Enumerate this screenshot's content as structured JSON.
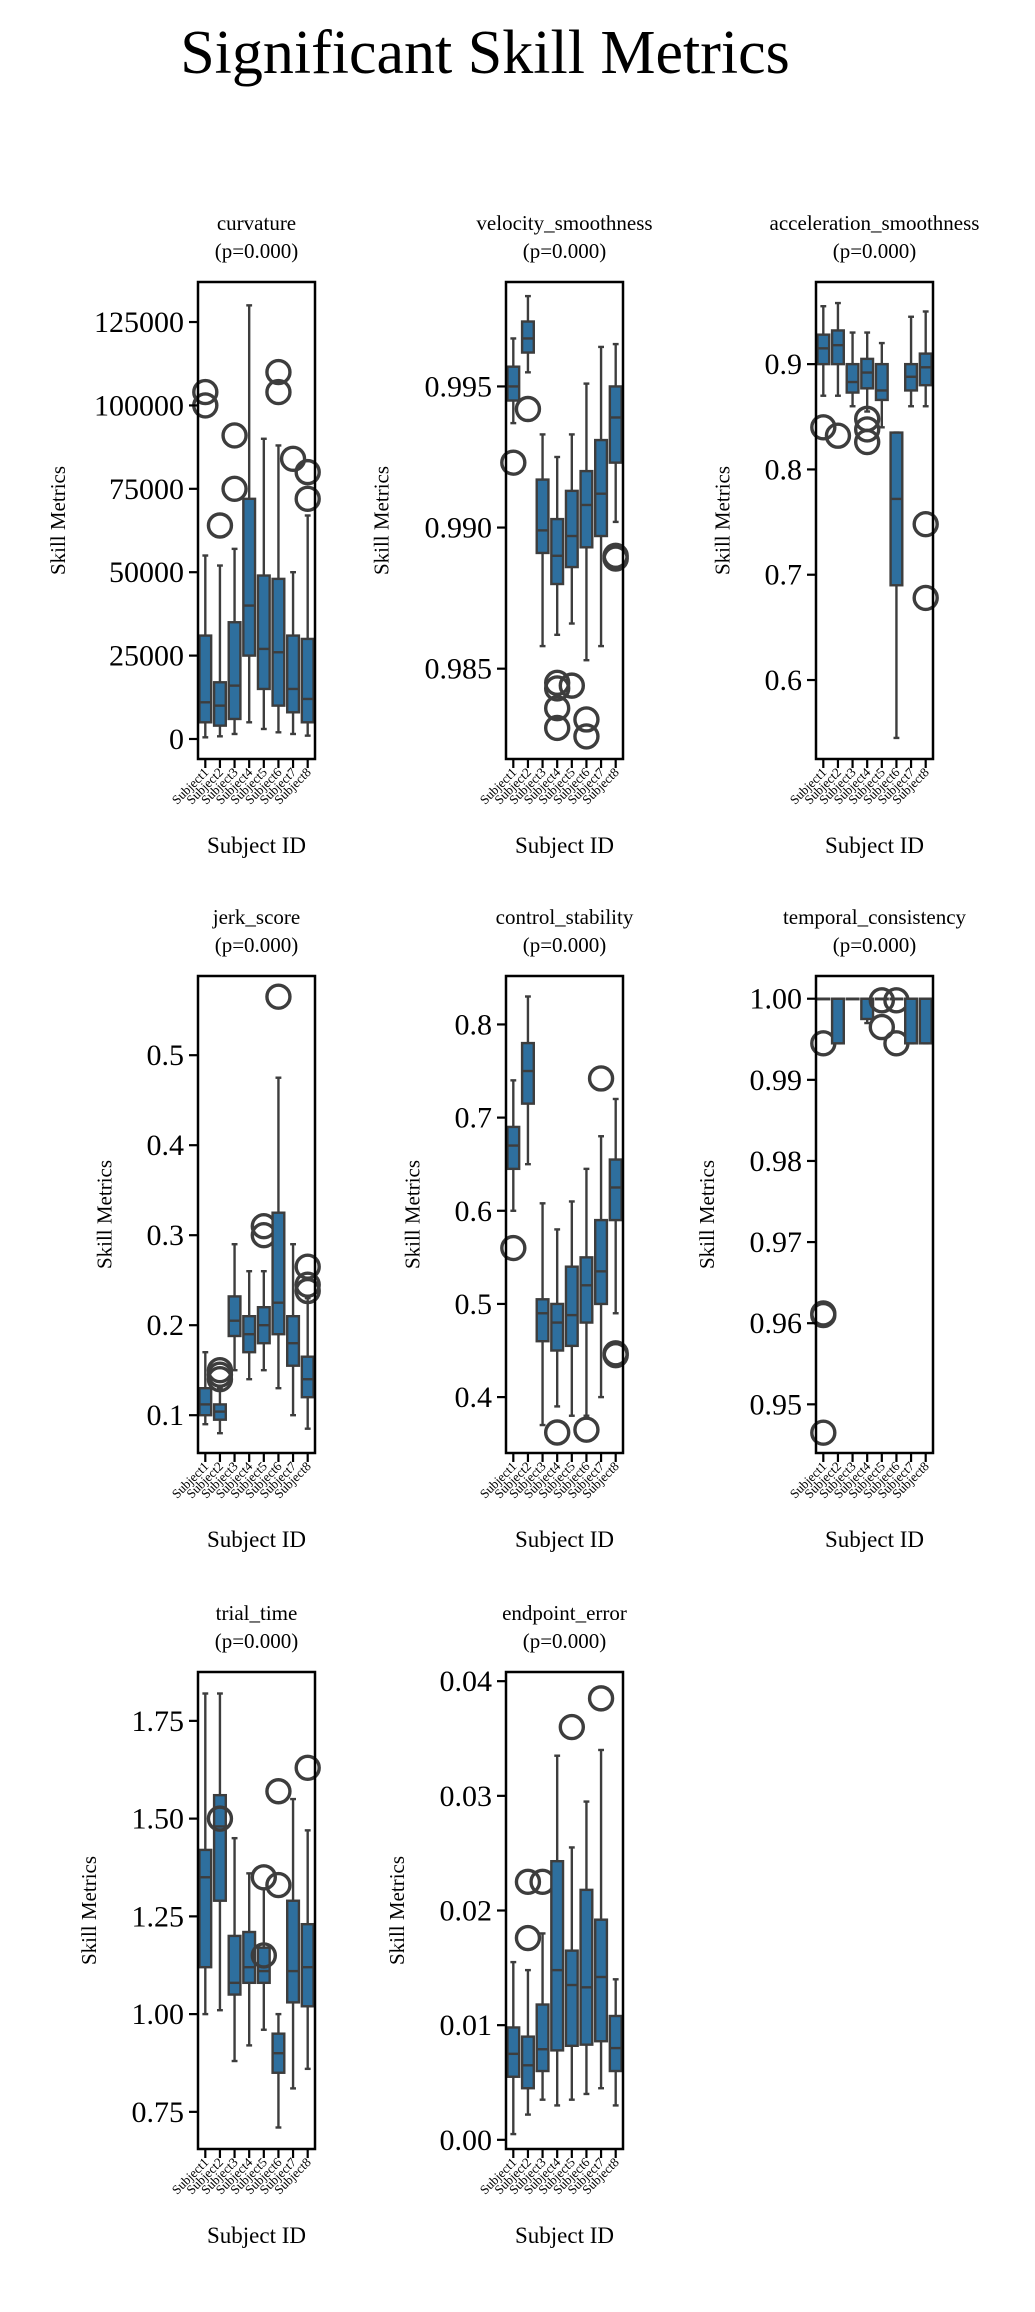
{
  "figure": {
    "title": "Significant Skill Metrics"
  },
  "style": {
    "box_color": "#2e6f9e",
    "line_color": "#3d3d3d",
    "outlier_color": "#3d3d3d"
  },
  "chart_data": [
    {
      "type": "box",
      "title": "curvature",
      "subtitle": "(p=0.000)",
      "xlabel": "Subject ID",
      "ylabel": "Skill Metrics",
      "ylim": [
        -6000,
        137000
      ],
      "yticks": [
        0,
        25000,
        50000,
        75000,
        100000,
        125000
      ],
      "ytick_labels": [
        "0",
        "25000",
        "50000",
        "75000",
        "100000",
        "125000"
      ],
      "categories": [
        "Subject1",
        "Subject2",
        "Subject3",
        "Subject4",
        "Subject5",
        "Subject6",
        "Subject7",
        "Subject8"
      ],
      "boxes": [
        {
          "whislo": 500,
          "q1": 5000,
          "med": 11000,
          "q3": 31000,
          "whishi": 55000,
          "fliers": [
            100000,
            104000
          ]
        },
        {
          "whislo": 800,
          "q1": 4000,
          "med": 10000,
          "q3": 17000,
          "whishi": 52000,
          "fliers": [
            64000
          ]
        },
        {
          "whislo": 1500,
          "q1": 6000,
          "med": 16000,
          "q3": 35000,
          "whishi": 57000,
          "fliers": [
            75000,
            91000
          ]
        },
        {
          "whislo": 5000,
          "q1": 25000,
          "med": 40000,
          "q3": 72000,
          "whishi": 130000,
          "fliers": []
        },
        {
          "whislo": 3000,
          "q1": 15000,
          "med": 27000,
          "q3": 49000,
          "whishi": 90000,
          "fliers": []
        },
        {
          "whislo": 2000,
          "q1": 10000,
          "med": 26000,
          "q3": 48000,
          "whishi": 88000,
          "fliers": [
            110000,
            104000
          ]
        },
        {
          "whislo": 1500,
          "q1": 8000,
          "med": 15000,
          "q3": 31000,
          "whishi": 50000,
          "fliers": [
            84000
          ]
        },
        {
          "whislo": 1000,
          "q1": 5000,
          "med": 12000,
          "q3": 30000,
          "whishi": 67000,
          "fliers": [
            80000,
            72000
          ]
        }
      ]
    },
    {
      "type": "box",
      "title": "velocity_smoothness",
      "subtitle": "(p=0.000)",
      "xlabel": "Subject ID",
      "ylabel": "Skill Metrics",
      "ylim": [
        0.9818,
        0.9987
      ],
      "yticks": [
        0.985,
        0.99,
        0.995
      ],
      "ytick_labels": [
        "0.985",
        "0.990",
        "0.995"
      ],
      "categories": [
        "Subject1",
        "Subject2",
        "Subject3",
        "Subject4",
        "Subject5",
        "Subject6",
        "Subject7",
        "Subject8"
      ],
      "boxes": [
        {
          "whislo": 0.9937,
          "q1": 0.9945,
          "med": 0.995,
          "q3": 0.9957,
          "whishi": 0.9967,
          "fliers": [
            0.9923
          ]
        },
        {
          "whislo": 0.9955,
          "q1": 0.9962,
          "med": 0.9967,
          "q3": 0.9973,
          "whishi": 0.9982,
          "fliers": [
            0.9942
          ]
        },
        {
          "whislo": 0.9858,
          "q1": 0.9891,
          "med": 0.9899,
          "q3": 0.9917,
          "whishi": 0.9933,
          "fliers": []
        },
        {
          "whislo": 0.9862,
          "q1": 0.988,
          "med": 0.989,
          "q3": 0.9903,
          "whishi": 0.9925,
          "fliers": [
            0.9845,
            0.9843,
            0.9836,
            0.9829
          ]
        },
        {
          "whislo": 0.9866,
          "q1": 0.9886,
          "med": 0.9897,
          "q3": 0.9913,
          "whishi": 0.9933,
          "fliers": [
            0.9844
          ]
        },
        {
          "whislo": 0.9853,
          "q1": 0.9893,
          "med": 0.9908,
          "q3": 0.992,
          "whishi": 0.9951,
          "fliers": [
            0.9832,
            0.9826
          ]
        },
        {
          "whislo": 0.9858,
          "q1": 0.9897,
          "med": 0.9912,
          "q3": 0.9931,
          "whishi": 0.9964,
          "fliers": []
        },
        {
          "whislo": 0.9902,
          "q1": 0.9923,
          "med": 0.9939,
          "q3": 0.995,
          "whishi": 0.9965,
          "fliers": [
            0.9889,
            0.989
          ]
        }
      ]
    },
    {
      "type": "box",
      "title": "acceleration_smoothness",
      "subtitle": "(p=0.000)",
      "xlabel": "Subject ID",
      "ylabel": "Skill Metrics",
      "ylim": [
        0.525,
        0.978
      ],
      "yticks": [
        0.6,
        0.7,
        0.8,
        0.9
      ],
      "ytick_labels": [
        "0.6",
        "0.7",
        "0.8",
        "0.9"
      ],
      "categories": [
        "Subject1",
        "Subject2",
        "Subject3",
        "Subject4",
        "Subject5",
        "Subject6",
        "Subject7",
        "Subject8"
      ],
      "boxes": [
        {
          "whislo": 0.87,
          "q1": 0.9,
          "med": 0.915,
          "q3": 0.928,
          "whishi": 0.955,
          "fliers": [
            0.84
          ]
        },
        {
          "whislo": 0.87,
          "q1": 0.9,
          "med": 0.918,
          "q3": 0.932,
          "whishi": 0.958,
          "fliers": [
            0.832
          ]
        },
        {
          "whislo": 0.86,
          "q1": 0.873,
          "med": 0.883,
          "q3": 0.9,
          "whishi": 0.93,
          "fliers": []
        },
        {
          "whislo": 0.855,
          "q1": 0.877,
          "med": 0.892,
          "q3": 0.905,
          "whishi": 0.93,
          "fliers": [
            0.848,
            0.838,
            0.826
          ]
        },
        {
          "whislo": 0.84,
          "q1": 0.866,
          "med": 0.875,
          "q3": 0.9,
          "whishi": 0.92,
          "fliers": []
        },
        {
          "whislo": 0.545,
          "q1": 0.69,
          "med": 0.772,
          "q3": 0.835,
          "whishi": 0.835,
          "fliers": []
        },
        {
          "whislo": 0.86,
          "q1": 0.875,
          "med": 0.888,
          "q3": 0.9,
          "whishi": 0.945,
          "fliers": []
        },
        {
          "whislo": 0.86,
          "q1": 0.88,
          "med": 0.897,
          "q3": 0.91,
          "whishi": 0.95,
          "fliers": [
            0.748,
            0.678
          ]
        }
      ]
    },
    {
      "type": "box",
      "title": "jerk_score",
      "subtitle": "(p=0.000)",
      "xlabel": "Subject ID",
      "ylabel": "Skill Metrics",
      "ylim": [
        0.058,
        0.588
      ],
      "yticks": [
        0.1,
        0.2,
        0.3,
        0.4,
        0.5
      ],
      "ytick_labels": [
        "0.1",
        "0.2",
        "0.3",
        "0.4",
        "0.5"
      ],
      "categories": [
        "Subject1",
        "Subject2",
        "Subject3",
        "Subject4",
        "Subject5",
        "Subject6",
        "Subject7",
        "Subject8"
      ],
      "boxes": [
        {
          "whislo": 0.09,
          "q1": 0.1,
          "med": 0.112,
          "q3": 0.13,
          "whishi": 0.17,
          "fliers": []
        },
        {
          "whislo": 0.08,
          "q1": 0.095,
          "med": 0.104,
          "q3": 0.112,
          "whishi": 0.13,
          "fliers": [
            0.15,
            0.145,
            0.14
          ]
        },
        {
          "whislo": 0.15,
          "q1": 0.188,
          "med": 0.205,
          "q3": 0.232,
          "whishi": 0.29,
          "fliers": []
        },
        {
          "whislo": 0.14,
          "q1": 0.17,
          "med": 0.19,
          "q3": 0.21,
          "whishi": 0.26,
          "fliers": []
        },
        {
          "whislo": 0.15,
          "q1": 0.18,
          "med": 0.2,
          "q3": 0.22,
          "whishi": 0.26,
          "fliers": [
            0.31,
            0.3
          ]
        },
        {
          "whislo": 0.13,
          "q1": 0.19,
          "med": 0.225,
          "q3": 0.325,
          "whishi": 0.475,
          "fliers": [
            0.565
          ]
        },
        {
          "whislo": 0.1,
          "q1": 0.155,
          "med": 0.18,
          "q3": 0.21,
          "whishi": 0.29,
          "fliers": []
        },
        {
          "whislo": 0.085,
          "q1": 0.12,
          "med": 0.14,
          "q3": 0.165,
          "whishi": 0.23,
          "fliers": [
            0.265,
            0.245,
            0.238
          ]
        }
      ]
    },
    {
      "type": "box",
      "title": "control_stability",
      "subtitle": "(p=0.000)",
      "xlabel": "Subject ID",
      "ylabel": "Skill Metrics",
      "ylim": [
        0.34,
        0.852
      ],
      "yticks": [
        0.4,
        0.5,
        0.6,
        0.7,
        0.8
      ],
      "ytick_labels": [
        "0.4",
        "0.5",
        "0.6",
        "0.7",
        "0.8"
      ],
      "categories": [
        "Subject1",
        "Subject2",
        "Subject3",
        "Subject4",
        "Subject5",
        "Subject6",
        "Subject7",
        "Subject8"
      ],
      "boxes": [
        {
          "whislo": 0.6,
          "q1": 0.645,
          "med": 0.67,
          "q3": 0.69,
          "whishi": 0.74,
          "fliers": [
            0.56
          ]
        },
        {
          "whislo": 0.65,
          "q1": 0.715,
          "med": 0.75,
          "q3": 0.78,
          "whishi": 0.83,
          "fliers": []
        },
        {
          "whislo": 0.37,
          "q1": 0.46,
          "med": 0.49,
          "q3": 0.505,
          "whishi": 0.608,
          "fliers": []
        },
        {
          "whislo": 0.39,
          "q1": 0.45,
          "med": 0.48,
          "q3": 0.5,
          "whishi": 0.58,
          "fliers": [
            0.362
          ]
        },
        {
          "whislo": 0.38,
          "q1": 0.455,
          "med": 0.488,
          "q3": 0.54,
          "whishi": 0.61,
          "fliers": []
        },
        {
          "whislo": 0.38,
          "q1": 0.48,
          "med": 0.52,
          "q3": 0.55,
          "whishi": 0.645,
          "fliers": [
            0.365
          ]
        },
        {
          "whislo": 0.4,
          "q1": 0.5,
          "med": 0.535,
          "q3": 0.59,
          "whishi": 0.68,
          "fliers": [
            0.742
          ]
        },
        {
          "whislo": 0.49,
          "q1": 0.59,
          "med": 0.625,
          "q3": 0.655,
          "whishi": 0.72,
          "fliers": [
            0.447,
            0.445
          ]
        }
      ]
    },
    {
      "type": "box",
      "title": "temporal_consistency",
      "subtitle": "(p=0.000)",
      "xlabel": "Subject ID",
      "ylabel": "Skill Metrics",
      "ylim": [
        0.944,
        1.0028
      ],
      "yticks": [
        0.95,
        0.96,
        0.97,
        0.98,
        0.99,
        1.0
      ],
      "ytick_labels": [
        "0.95",
        "0.96",
        "0.97",
        "0.98",
        "0.99",
        "1.00"
      ],
      "categories": [
        "Subject1",
        "Subject2",
        "Subject3",
        "Subject4",
        "Subject5",
        "Subject6",
        "Subject7",
        "Subject8"
      ],
      "boxes": [
        {
          "whislo": 1.0,
          "q1": 1.0,
          "med": 1.0,
          "q3": 1.0,
          "whishi": 1.0,
          "fliers": [
            0.9945,
            0.9612,
            0.961,
            0.9465
          ]
        },
        {
          "whislo": 0.9945,
          "q1": 0.9945,
          "med": 1.0,
          "q3": 1.0,
          "whishi": 1.0,
          "fliers": []
        },
        {
          "whislo": 1.0,
          "q1": 1.0,
          "med": 1.0,
          "q3": 1.0,
          "whishi": 1.0,
          "fliers": []
        },
        {
          "whislo": 0.997,
          "q1": 0.9975,
          "med": 1.0,
          "q3": 1.0,
          "whishi": 1.0,
          "fliers": []
        },
        {
          "whislo": 1.0,
          "q1": 1.0,
          "med": 1.0,
          "q3": 1.0,
          "whishi": 1.0,
          "fliers": [
            0.9998,
            0.9965
          ]
        },
        {
          "whislo": 1.0,
          "q1": 1.0,
          "med": 1.0,
          "q3": 1.0,
          "whishi": 1.0,
          "fliers": [
            0.9998,
            0.9945
          ]
        },
        {
          "whislo": 0.9945,
          "q1": 0.9945,
          "med": 1.0,
          "q3": 1.0,
          "whishi": 1.0,
          "fliers": []
        },
        {
          "whislo": 0.9945,
          "q1": 0.9945,
          "med": 1.0,
          "q3": 1.0,
          "whishi": 1.0,
          "fliers": []
        }
      ]
    },
    {
      "type": "box",
      "title": "trial_time",
      "subtitle": "(p=0.000)",
      "xlabel": "Subject ID",
      "ylabel": "Skill Metrics",
      "ylim": [
        0.655,
        1.875
      ],
      "yticks": [
        0.75,
        1.0,
        1.25,
        1.5,
        1.75
      ],
      "ytick_labels": [
        "0.75",
        "1.00",
        "1.25",
        "1.50",
        "1.75"
      ],
      "categories": [
        "Subject1",
        "Subject2",
        "Subject3",
        "Subject4",
        "Subject5",
        "Subject6",
        "Subject7",
        "Subject8"
      ],
      "boxes": [
        {
          "whislo": 1.0,
          "q1": 1.12,
          "med": 1.35,
          "q3": 1.42,
          "whishi": 1.82,
          "fliers": []
        },
        {
          "whislo": 1.01,
          "q1": 1.29,
          "med": 1.48,
          "q3": 1.56,
          "whishi": 1.82,
          "fliers": [
            1.5
          ]
        },
        {
          "whislo": 0.88,
          "q1": 1.05,
          "med": 1.08,
          "q3": 1.2,
          "whishi": 1.45,
          "fliers": []
        },
        {
          "whislo": 0.92,
          "q1": 1.08,
          "med": 1.12,
          "q3": 1.21,
          "whishi": 1.36,
          "fliers": []
        },
        {
          "whislo": 0.96,
          "q1": 1.08,
          "med": 1.11,
          "q3": 1.17,
          "whishi": 1.32,
          "fliers": [
            1.35,
            1.15
          ]
        },
        {
          "whislo": 0.71,
          "q1": 0.85,
          "med": 0.9,
          "q3": 0.95,
          "whishi": 1.0,
          "fliers": [
            1.57,
            1.33
          ]
        },
        {
          "whislo": 0.81,
          "q1": 1.03,
          "med": 1.11,
          "q3": 1.29,
          "whishi": 1.55,
          "fliers": []
        },
        {
          "whislo": 0.86,
          "q1": 1.02,
          "med": 1.12,
          "q3": 1.23,
          "whishi": 1.47,
          "fliers": [
            1.63
          ]
        }
      ]
    },
    {
      "type": "box",
      "title": "endpoint_error",
      "subtitle": "(p=0.000)",
      "xlabel": "Subject ID",
      "ylabel": "Skill Metrics",
      "ylim": [
        -0.0008,
        0.0408
      ],
      "yticks": [
        0.0,
        0.01,
        0.02,
        0.03,
        0.04
      ],
      "ytick_labels": [
        "0.00",
        "0.01",
        "0.02",
        "0.03",
        "0.04"
      ],
      "categories": [
        "Subject1",
        "Subject2",
        "Subject3",
        "Subject4",
        "Subject5",
        "Subject6",
        "Subject7",
        "Subject8"
      ],
      "boxes": [
        {
          "whislo": 0.0005,
          "q1": 0.0055,
          "med": 0.0075,
          "q3": 0.0098,
          "whishi": 0.0155,
          "fliers": []
        },
        {
          "whislo": 0.0022,
          "q1": 0.0045,
          "med": 0.0065,
          "q3": 0.009,
          "whishi": 0.0148,
          "fliers": [
            0.0225,
            0.0176
          ]
        },
        {
          "whislo": 0.0035,
          "q1": 0.006,
          "med": 0.0079,
          "q3": 0.0118,
          "whishi": 0.018,
          "fliers": [
            0.0225
          ]
        },
        {
          "whislo": 0.003,
          "q1": 0.0078,
          "med": 0.0148,
          "q3": 0.0243,
          "whishi": 0.0335,
          "fliers": []
        },
        {
          "whislo": 0.0035,
          "q1": 0.0082,
          "med": 0.0135,
          "q3": 0.0165,
          "whishi": 0.0255,
          "fliers": [
            0.036
          ]
        },
        {
          "whislo": 0.004,
          "q1": 0.0083,
          "med": 0.0133,
          "q3": 0.0218,
          "whishi": 0.0295,
          "fliers": []
        },
        {
          "whislo": 0.0045,
          "q1": 0.0086,
          "med": 0.0142,
          "q3": 0.0192,
          "whishi": 0.034,
          "fliers": [
            0.0385
          ]
        },
        {
          "whislo": 0.003,
          "q1": 0.006,
          "med": 0.008,
          "q3": 0.0108,
          "whishi": 0.014,
          "fliers": []
        }
      ]
    }
  ]
}
